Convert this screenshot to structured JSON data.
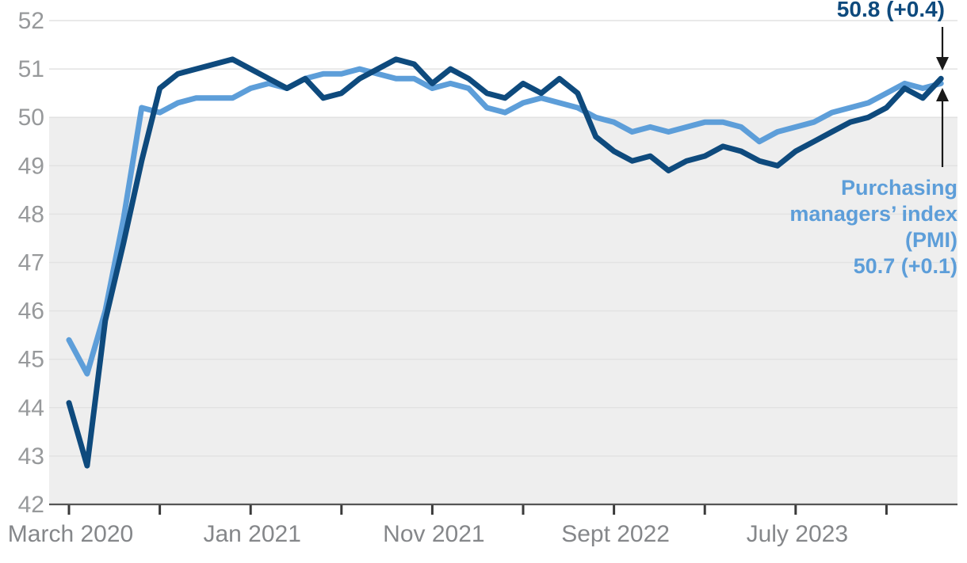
{
  "chart_data": {
    "type": "line",
    "title": "",
    "xlabel": "",
    "ylabel": "",
    "ylim": [
      42,
      52
    ],
    "yticks": [
      52,
      51,
      50,
      49,
      48,
      47,
      46,
      45,
      44,
      43,
      42
    ],
    "grid": "horizontal",
    "shaded_region": {
      "below_value": 50,
      "color": "#eeeeee",
      "meaning": "area below 50"
    },
    "x_start": "March 2020",
    "x_end": "March 2024",
    "months": [
      "Mar 2020",
      "Apr 2020",
      "May 2020",
      "Jun 2020",
      "Jul 2020",
      "Aug 2020",
      "Sep 2020",
      "Oct 2020",
      "Nov 2020",
      "Dec 2020",
      "Jan 2021",
      "Feb 2021",
      "Mar 2021",
      "Apr 2021",
      "May 2021",
      "Jun 2021",
      "Jul 2021",
      "Aug 2021",
      "Sep 2021",
      "Oct 2021",
      "Nov 2021",
      "Dec 2021",
      "Jan 2022",
      "Feb 2022",
      "Mar 2022",
      "Apr 2022",
      "May 2022",
      "Jun 2022",
      "Jul 2022",
      "Aug 2022",
      "Sep 2022",
      "Oct 2022",
      "Nov 2022",
      "Dec 2022",
      "Jan 2023",
      "Feb 2023",
      "Mar 2023",
      "Apr 2023",
      "May 2023",
      "Jun 2023",
      "Jul 2023",
      "Aug 2023",
      "Sep 2023",
      "Oct 2023",
      "Nov 2023",
      "Dec 2023",
      "Jan 2024",
      "Feb 2024",
      "Mar 2024"
    ],
    "xtick_month_indices": [
      0,
      5,
      10,
      15,
      20,
      25,
      30,
      35,
      40,
      45
    ],
    "xtick_labels": [
      {
        "month_index": 0,
        "label": "March 2020"
      },
      {
        "month_index": 10,
        "label": "Jan 2021"
      },
      {
        "month_index": 20,
        "label": "Nov 2021"
      },
      {
        "month_index": 30,
        "label": "Sept 2022"
      },
      {
        "month_index": 40,
        "label": "July 2023"
      }
    ],
    "series": [
      {
        "name": "light-blue-series",
        "label_lines": [
          "Purchasing",
          "managers’ index",
          "(PMI)",
          "50.7 (+0.1)"
        ],
        "latest_value": 50.7,
        "latest_change": "+0.1",
        "color": "#5d9ed9",
        "values": [
          45.4,
          44.7,
          46.0,
          47.9,
          50.2,
          50.1,
          50.3,
          50.4,
          50.4,
          50.4,
          50.6,
          50.7,
          50.6,
          50.8,
          50.9,
          50.9,
          51.0,
          50.9,
          50.8,
          50.8,
          50.6,
          50.7,
          50.6,
          50.2,
          50.1,
          50.3,
          50.4,
          50.3,
          50.2,
          50.0,
          49.9,
          49.7,
          49.8,
          49.7,
          49.8,
          49.9,
          49.9,
          49.8,
          49.5,
          49.7,
          49.8,
          49.9,
          50.1,
          50.2,
          50.3,
          50.5,
          50.7,
          50.6,
          50.7
        ]
      },
      {
        "name": "dark-blue-series",
        "label_lines": [
          "50.8 (+0.4)"
        ],
        "latest_value": 50.8,
        "latest_change": "+0.4",
        "color": "#0e4a7d",
        "values": [
          44.1,
          42.8,
          45.8,
          47.4,
          49.1,
          50.6,
          50.9,
          51.0,
          51.1,
          51.2,
          51.0,
          50.8,
          50.6,
          50.8,
          50.4,
          50.5,
          50.8,
          51.0,
          51.2,
          51.1,
          50.7,
          51.0,
          50.8,
          50.5,
          50.4,
          50.7,
          50.5,
          50.8,
          50.5,
          49.6,
          49.3,
          49.1,
          49.2,
          48.9,
          49.1,
          49.2,
          49.4,
          49.3,
          49.1,
          49.0,
          49.3,
          49.5,
          49.7,
          49.9,
          50.0,
          50.2,
          50.6,
          50.4,
          50.8
        ]
      }
    ],
    "annotations": {
      "dark_end_label": "50.8 (+0.4)",
      "light_end_label_lines": [
        "Purchasing",
        "managers’ index",
        "(PMI)",
        "50.7 (+0.1)"
      ],
      "arrow_color": "#1a1a1a"
    },
    "colors": {
      "dark_line": "#0e4a7d",
      "light_line": "#5d9ed9",
      "ytick_text": "#97999b",
      "xtick_text": "#85878a",
      "gridline": "#e2e2e2",
      "axis_line": "#555555",
      "tick_mark": "#3a3a3a",
      "shade": "#eeeeee",
      "background": "#ffffff"
    }
  }
}
